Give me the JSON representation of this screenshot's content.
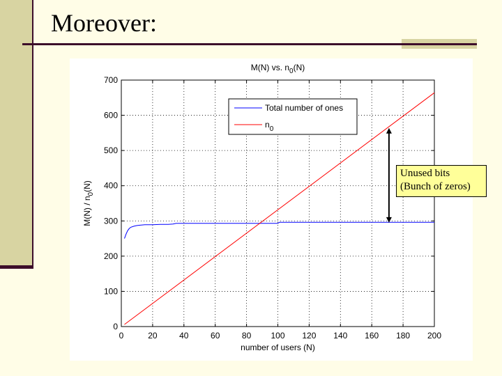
{
  "slide": {
    "title": "Moreover:",
    "colors": {
      "background": "#fffde7",
      "sidebar": "#d8d4a2",
      "rule": "#3c0d2a"
    }
  },
  "callout": {
    "line1": "Unused bits",
    "line2": "(Bunch of zeros)",
    "background": "#ffff99",
    "arrow_x": 171,
    "arrow_from_y": 295,
    "arrow_to_y": 564
  },
  "chart_data": {
    "type": "line",
    "title_main": "M(N) vs. n",
    "title_sub": "0",
    "title_tail": "(N)",
    "xlabel": "number of users (N)",
    "ylabel_main": "M(N) / n",
    "ylabel_sub": "0",
    "ylabel_tail": "(N)",
    "xlim": [
      0,
      200
    ],
    "ylim": [
      0,
      700
    ],
    "xticks": [
      0,
      20,
      40,
      60,
      80,
      100,
      120,
      140,
      160,
      180,
      200
    ],
    "yticks": [
      0,
      100,
      200,
      300,
      400,
      500,
      600,
      700
    ],
    "grid": true,
    "legend_position": "top-right",
    "series": [
      {
        "name": "Total number of ones",
        "color": "#0000ff",
        "x": [
          2,
          3,
          4,
          5,
          6,
          8,
          10,
          12,
          15,
          20,
          25,
          30,
          33,
          35,
          40,
          50,
          60,
          80,
          100,
          101,
          102,
          120,
          150,
          200
        ],
        "y": [
          250,
          262,
          272,
          278,
          282,
          285,
          287,
          288,
          289,
          289,
          290,
          290,
          291,
          293,
          293,
          293,
          293,
          293,
          293,
          296,
          296,
          296,
          296,
          296
        ]
      },
      {
        "name": "n",
        "name_sub": "0",
        "color": "#ff0000",
        "x": [
          2,
          200
        ],
        "y": [
          6,
          664
        ]
      }
    ]
  }
}
